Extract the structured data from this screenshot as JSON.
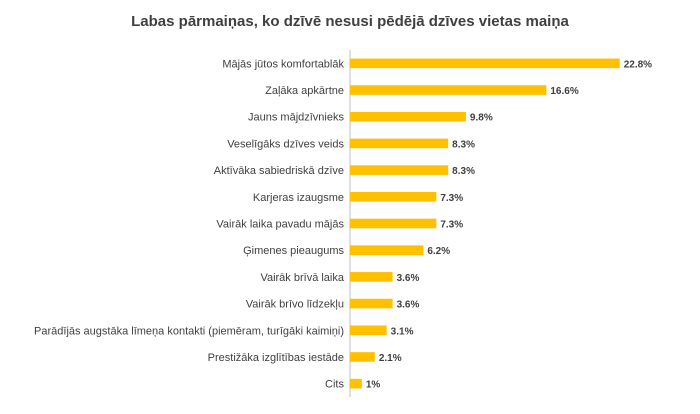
{
  "chart_data": {
    "type": "bar",
    "orientation": "horizontal",
    "title": "Labas pārmaiņas, ko dzīvē nesusi pēdējā dzīves vietas maiņa",
    "xlabel": "",
    "ylabel": "",
    "categories": [
      "Mājās jūtos komfortablāk",
      "Zaļāka apkārtne",
      "Jauns mājdzīvnieks",
      "Veselīgāks dzīves veids",
      "Aktīvāka sabiedriskā dzīve",
      "Karjeras izaugsme",
      "Vairāk laika pavadu mājās",
      "Ģimenes pieaugums",
      "Vairāk brīvā laika",
      "Vairāk brīvo līdzekļu",
      "Parādījās augstāka līmeņa kontakti (piemēram, turīgāki kaimiņi)",
      "Prestižāka izglītības iestāde",
      "Cits"
    ],
    "values": [
      22.8,
      16.6,
      9.8,
      8.3,
      8.3,
      7.3,
      7.3,
      6.2,
      3.6,
      3.6,
      3.1,
      2.1,
      1
    ],
    "value_labels": [
      "22.8%",
      "16.6%",
      "9.8%",
      "8.3%",
      "8.3%",
      "7.3%",
      "7.3%",
      "6.2%",
      "3.6%",
      "3.6%",
      "3.1%",
      "2.1%",
      "1%"
    ],
    "xlim": [
      0,
      23.5
    ],
    "bar_color": "#FFC000",
    "grid": false,
    "legend": "none"
  }
}
